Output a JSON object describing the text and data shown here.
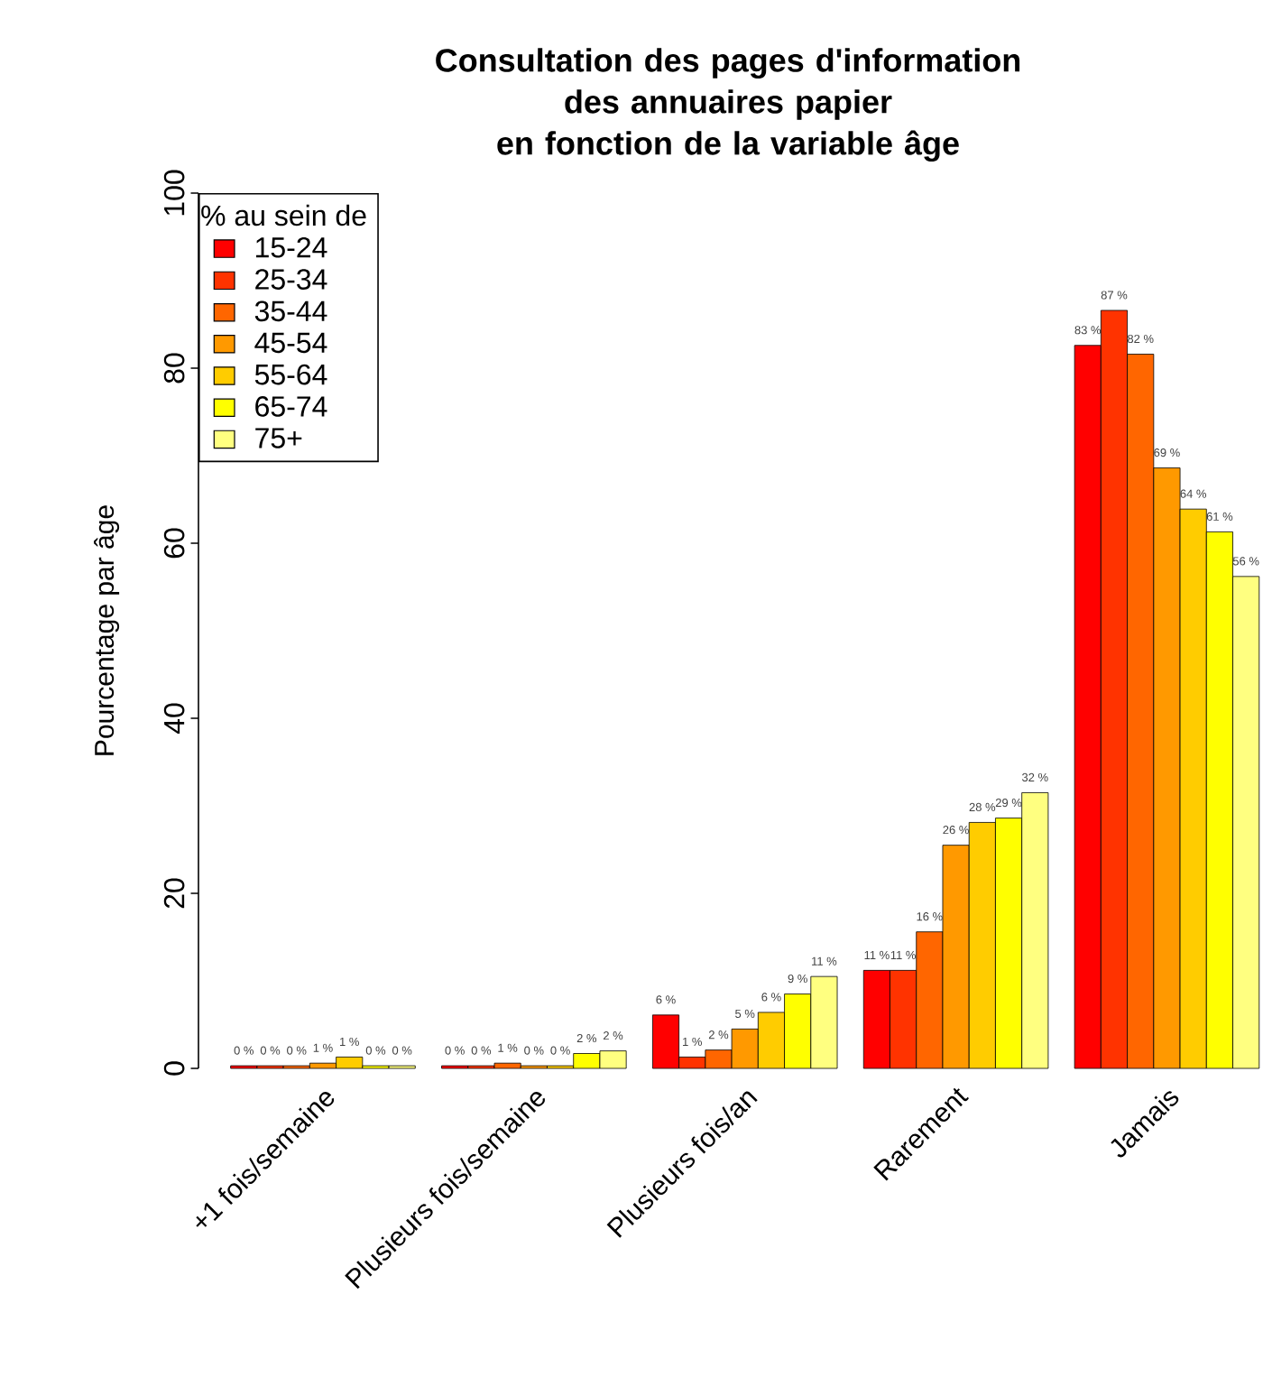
{
  "chart_data": {
    "type": "bar",
    "title": "Consultation des pages d'information\ndes annuaires papier\nen fonction de la variable âge",
    "ylabel": "Pourcentage par âge",
    "legend_title": "% au sein de",
    "categories": [
      "+1 fois/semaine",
      "Plusieurs fois/semaine",
      "Plusieurs fois/an",
      "Rarement",
      "Jamais"
    ],
    "ylim": [
      0,
      100
    ],
    "yticks": [
      0,
      20,
      40,
      60,
      80,
      100
    ],
    "legend": "top left",
    "grid": false,
    "series": [
      {
        "name": "15-24",
        "color": "#ff0000",
        "values": [
          0.3,
          0.3,
          6.1,
          11.2,
          82.6
        ],
        "value_labels": [
          "0 %",
          "0 %",
          "6 %",
          "11 %",
          "83 %"
        ]
      },
      {
        "name": "25-34",
        "color": "#ff3300",
        "values": [
          0.3,
          0.3,
          1.3,
          11.2,
          86.6
        ],
        "value_labels": [
          "0 %",
          "0 %",
          "1 %",
          "11 %",
          "87 %"
        ]
      },
      {
        "name": "35-44",
        "color": "#ff6600",
        "values": [
          0.3,
          0.6,
          2.1,
          15.6,
          81.6
        ],
        "value_labels": [
          "0 %",
          "1 %",
          "2 %",
          "16 %",
          "82 %"
        ]
      },
      {
        "name": "45-54",
        "color": "#ff9900",
        "values": [
          0.6,
          0.3,
          4.5,
          25.5,
          68.6
        ],
        "value_labels": [
          "1 %",
          "0 %",
          "5 %",
          "26 %",
          "69 %"
        ]
      },
      {
        "name": "55-64",
        "color": "#ffcc00",
        "values": [
          1.3,
          0.3,
          6.4,
          28.1,
          63.9
        ],
        "value_labels": [
          "1 %",
          "0 %",
          "6 %",
          "28 %",
          "64 %"
        ]
      },
      {
        "name": "65-74",
        "color": "#ffff00",
        "values": [
          0.3,
          1.7,
          8.5,
          28.6,
          61.3
        ],
        "value_labels": [
          "0 %",
          "2 %",
          "9 %",
          "29 %",
          "61 %"
        ]
      },
      {
        "name": "75+",
        "color": "#ffff80",
        "values": [
          0.3,
          2.0,
          10.5,
          31.5,
          56.2
        ],
        "value_labels": [
          "0 %",
          "2 %",
          "11 %",
          "32 %",
          "56 %"
        ]
      }
    ]
  }
}
